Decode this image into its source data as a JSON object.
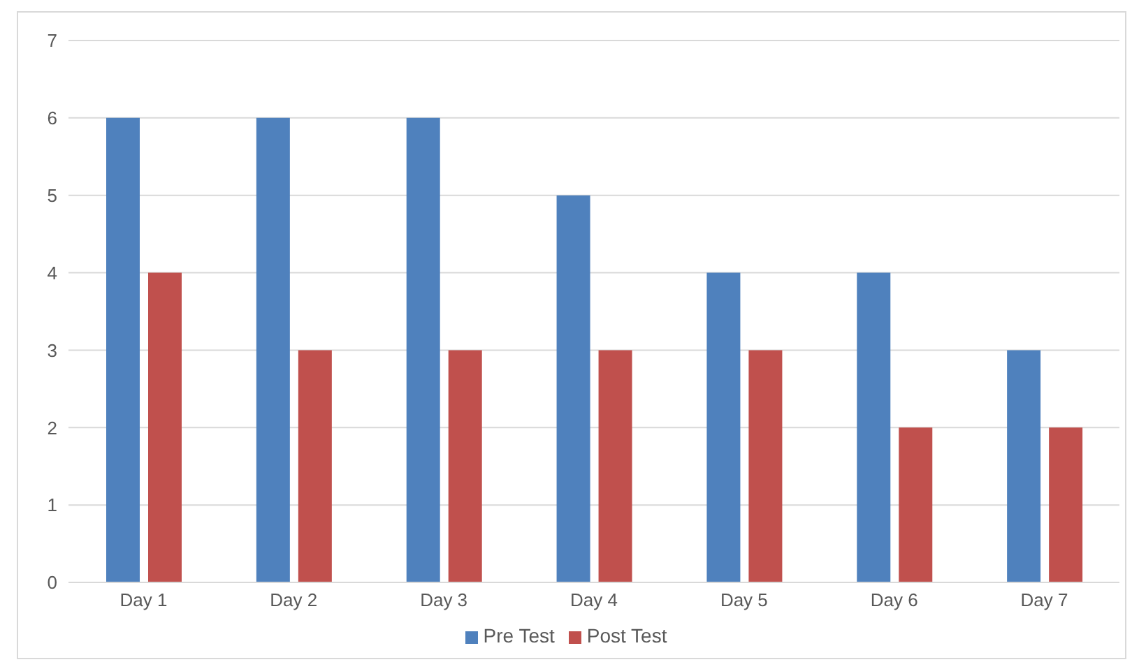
{
  "chart_data": {
    "type": "bar",
    "categories": [
      "Day 1",
      "Day 2",
      "Day 3",
      "Day 4",
      "Day 5",
      "Day 6",
      "Day 7"
    ],
    "series": [
      {
        "name": "Pre Test",
        "color": "#4f81bd",
        "values": [
          6,
          6,
          6,
          5,
          4,
          4,
          3
        ]
      },
      {
        "name": "Post Test",
        "color": "#c0504d",
        "values": [
          4,
          3,
          3,
          3,
          3,
          2,
          2
        ]
      }
    ],
    "ylim": [
      0,
      7
    ],
    "yticks": [
      0,
      1,
      2,
      3,
      4,
      5,
      6,
      7
    ],
    "grid": "y",
    "legend": "bottom"
  }
}
